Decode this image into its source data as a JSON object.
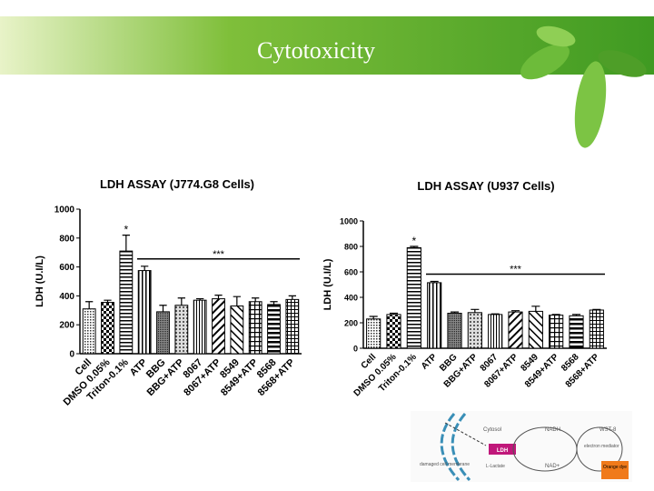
{
  "slide_title": "Cytotoxicity",
  "chart_data": [
    {
      "type": "bar",
      "title": "LDH ASSAY (J774.G8 Cells)",
      "y_label": "LDH (U.I/L)",
      "categories": [
        "Cell",
        "DMSO 0.05%",
        "Triton-0.1%",
        "ATP",
        "BBG",
        "BBG+ATP",
        "8067",
        "8067+ATP",
        "8549",
        "8549+ATP",
        "8568",
        "8568+ATP"
      ],
      "values": [
        310,
        355,
        710,
        575,
        290,
        335,
        370,
        380,
        330,
        360,
        340,
        375
      ],
      "errors": [
        50,
        15,
        110,
        30,
        45,
        50,
        10,
        25,
        65,
        25,
        20,
        25
      ],
      "ylim": [
        0,
        1000
      ],
      "yticks": [
        0,
        200,
        400,
        600,
        800,
        1000
      ],
      "annotations": [
        "*",
        "***"
      ]
    },
    {
      "type": "bar",
      "title": "LDH ASSAY (U937 Cells)",
      "y_label": "LDH (U.I/L)",
      "categories": [
        "Cell",
        "DMSO 0.05%",
        "Triton-0.1%",
        "ATP",
        "BBG",
        "BBG+ATP",
        "8067",
        "8067+ATP",
        "8549",
        "8549+ATP",
        "8568",
        "8568+ATP"
      ],
      "values": [
        230,
        265,
        790,
        515,
        275,
        280,
        265,
        285,
        290,
        260,
        255,
        300
      ],
      "errors": [
        20,
        10,
        10,
        10,
        10,
        25,
        5,
        10,
        40,
        5,
        10,
        5
      ],
      "ylim": [
        0,
        1000
      ],
      "yticks": [
        0,
        200,
        400,
        600,
        800,
        1000
      ],
      "annotations": [
        "*",
        "***"
      ]
    }
  ],
  "diagram": {
    "labels": [
      "Cytosol",
      "NADH",
      "WST-8",
      "electron mediator",
      "LDH",
      "damaged cell membrane",
      "L-Lactate",
      "NAD+",
      "Orange dye"
    ]
  }
}
